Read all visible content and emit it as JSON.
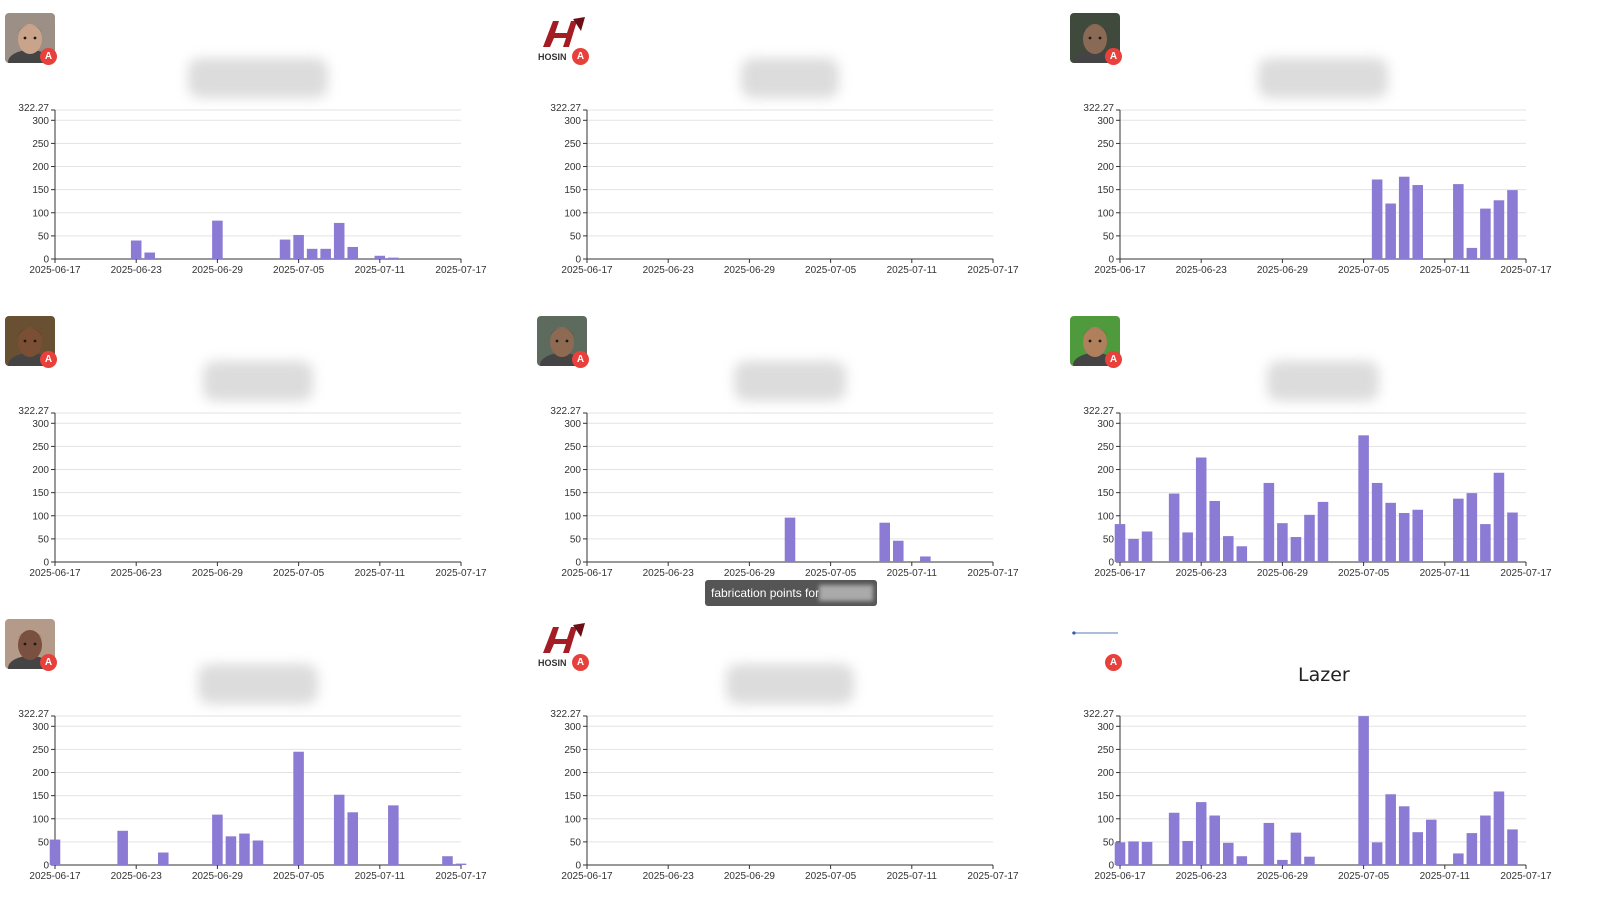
{
  "colors": {
    "bar": "#8b7bd4",
    "grid": "#e3e3e3",
    "axis": "#333333",
    "badge": "#e8413c"
  },
  "badge_letter": "A",
  "tooltip": {
    "text": "fabrication points for "
  },
  "chart_data": [
    {
      "type": "bar",
      "title": "",
      "logo": "person-1",
      "ymax_label": "322.27",
      "ylim": [
        0,
        322.27
      ],
      "y_ticks": [
        0,
        50,
        100,
        150,
        200,
        250,
        300
      ],
      "x_start": "2025-06-17",
      "x_end": "2025-07-17",
      "x_ticks": [
        "2025-06-17",
        "2025-06-23",
        "2025-06-29",
        "2025-07-05",
        "2025-07-11",
        "2025-07-17"
      ],
      "points": [
        [
          "2025-06-23",
          40
        ],
        [
          "2025-06-24",
          14
        ],
        [
          "2025-06-29",
          83
        ],
        [
          "2025-07-04",
          42
        ],
        [
          "2025-07-05",
          52
        ],
        [
          "2025-07-06",
          22
        ],
        [
          "2025-07-07",
          22
        ],
        [
          "2025-07-08",
          78
        ],
        [
          "2025-07-09",
          26
        ],
        [
          "2025-07-11",
          7
        ],
        [
          "2025-07-12",
          3
        ]
      ]
    },
    {
      "type": "bar",
      "title": "",
      "logo": "hosin",
      "ymax_label": "322.27",
      "ylim": [
        0,
        322.27
      ],
      "y_ticks": [
        0,
        50,
        100,
        150,
        200,
        250,
        300
      ],
      "x_start": "2025-06-17",
      "x_end": "2025-07-17",
      "x_ticks": [
        "2025-06-17",
        "2025-06-23",
        "2025-06-29",
        "2025-07-05",
        "2025-07-11",
        "2025-07-17"
      ],
      "points": []
    },
    {
      "type": "bar",
      "title": "",
      "logo": "person-2",
      "ymax_label": "322.27",
      "ylim": [
        0,
        322.27
      ],
      "y_ticks": [
        0,
        50,
        100,
        150,
        200,
        250,
        300
      ],
      "x_start": "2025-06-17",
      "x_end": "2025-07-17",
      "x_ticks": [
        "2025-06-17",
        "2025-06-23",
        "2025-06-29",
        "2025-07-05",
        "2025-07-11",
        "2025-07-17"
      ],
      "points": [
        [
          "2025-07-06",
          172
        ],
        [
          "2025-07-07",
          120
        ],
        [
          "2025-07-08",
          178
        ],
        [
          "2025-07-09",
          160
        ],
        [
          "2025-07-12",
          162
        ],
        [
          "2025-07-13",
          24
        ],
        [
          "2025-07-14",
          109
        ],
        [
          "2025-07-15",
          127
        ],
        [
          "2025-07-16",
          149
        ]
      ]
    },
    {
      "type": "bar",
      "title": "",
      "logo": "person-3",
      "ymax_label": "322.27",
      "ylim": [
        0,
        322.27
      ],
      "y_ticks": [
        0,
        50,
        100,
        150,
        200,
        250,
        300
      ],
      "x_start": "2025-06-17",
      "x_end": "2025-07-17",
      "x_ticks": [
        "2025-06-17",
        "2025-06-23",
        "2025-06-29",
        "2025-07-05",
        "2025-07-11",
        "2025-07-17"
      ],
      "points": []
    },
    {
      "type": "bar",
      "title": "",
      "logo": "person-4",
      "ymax_label": "322.27",
      "ylim": [
        0,
        322.27
      ],
      "y_ticks": [
        0,
        50,
        100,
        150,
        200,
        250,
        300
      ],
      "x_start": "2025-06-17",
      "x_end": "2025-07-17",
      "x_ticks": [
        "2025-06-17",
        "2025-06-23",
        "2025-06-29",
        "2025-07-05",
        "2025-07-11",
        "2025-07-17"
      ],
      "points": [
        [
          "2025-07-02",
          96
        ],
        [
          "2025-07-09",
          85
        ],
        [
          "2025-07-10",
          46
        ],
        [
          "2025-07-12",
          12
        ]
      ]
    },
    {
      "type": "bar",
      "title": "",
      "logo": "person-5",
      "ymax_label": "322.27",
      "ylim": [
        0,
        322.27
      ],
      "y_ticks": [
        0,
        50,
        100,
        150,
        200,
        250,
        300
      ],
      "x_start": "2025-06-17",
      "x_end": "2025-07-17",
      "x_ticks": [
        "2025-06-17",
        "2025-06-23",
        "2025-06-29",
        "2025-07-05",
        "2025-07-11",
        "2025-07-17"
      ],
      "points": [
        [
          "2025-06-17",
          82
        ],
        [
          "2025-06-18",
          50
        ],
        [
          "2025-06-19",
          66
        ],
        [
          "2025-06-21",
          148
        ],
        [
          "2025-06-22",
          64
        ],
        [
          "2025-06-23",
          226
        ],
        [
          "2025-06-24",
          132
        ],
        [
          "2025-06-25",
          56
        ],
        [
          "2025-06-26",
          34
        ],
        [
          "2025-06-28",
          171
        ],
        [
          "2025-06-29",
          84
        ],
        [
          "2025-06-30",
          54
        ],
        [
          "2025-07-01",
          102
        ],
        [
          "2025-07-02",
          130
        ],
        [
          "2025-07-05",
          274
        ],
        [
          "2025-07-06",
          171
        ],
        [
          "2025-07-07",
          128
        ],
        [
          "2025-07-08",
          106
        ],
        [
          "2025-07-09",
          113
        ],
        [
          "2025-07-12",
          137
        ],
        [
          "2025-07-13",
          149
        ],
        [
          "2025-07-14",
          82
        ],
        [
          "2025-07-15",
          193
        ],
        [
          "2025-07-16",
          107
        ]
      ]
    },
    {
      "type": "bar",
      "title": "",
      "logo": "person-6",
      "ymax_label": "322.27",
      "ylim": [
        0,
        322.27
      ],
      "y_ticks": [
        0,
        50,
        100,
        150,
        200,
        250,
        300
      ],
      "x_start": "2025-06-17",
      "x_end": "2025-07-17",
      "x_ticks": [
        "2025-06-17",
        "2025-06-23",
        "2025-06-29",
        "2025-07-05",
        "2025-07-11",
        "2025-07-17"
      ],
      "points": [
        [
          "2025-06-17",
          55
        ],
        [
          "2025-06-22",
          74
        ],
        [
          "2025-06-25",
          27
        ],
        [
          "2025-06-29",
          109
        ],
        [
          "2025-06-30",
          62
        ],
        [
          "2025-07-01",
          68
        ],
        [
          "2025-07-02",
          53
        ],
        [
          "2025-07-05",
          245
        ],
        [
          "2025-07-08",
          152
        ],
        [
          "2025-07-09",
          114
        ],
        [
          "2025-07-12",
          129
        ],
        [
          "2025-07-16",
          19
        ],
        [
          "2025-07-17",
          3
        ]
      ]
    },
    {
      "type": "bar",
      "title": "",
      "logo": "hosin",
      "ymax_label": "322.27",
      "ylim": [
        0,
        322.27
      ],
      "y_ticks": [
        0,
        50,
        100,
        150,
        200,
        250,
        300
      ],
      "x_start": "2025-06-17",
      "x_end": "2025-07-17",
      "x_ticks": [
        "2025-06-17",
        "2025-06-23",
        "2025-06-29",
        "2025-07-05",
        "2025-07-11",
        "2025-07-17"
      ],
      "points": []
    },
    {
      "type": "bar",
      "title": "Lazer",
      "logo": "chronometer",
      "ymax_label": "322.27",
      "ylim": [
        0,
        322.27
      ],
      "y_ticks": [
        0,
        50,
        100,
        150,
        200,
        250,
        300
      ],
      "x_start": "2025-06-17",
      "x_end": "2025-07-17",
      "x_ticks": [
        "2025-06-17",
        "2025-06-23",
        "2025-06-29",
        "2025-07-05",
        "2025-07-11",
        "2025-07-17"
      ],
      "points": [
        [
          "2025-06-17",
          49
        ],
        [
          "2025-06-18",
          51
        ],
        [
          "2025-06-19",
          50
        ],
        [
          "2025-06-21",
          113
        ],
        [
          "2025-06-22",
          52
        ],
        [
          "2025-06-23",
          136
        ],
        [
          "2025-06-24",
          107
        ],
        [
          "2025-06-25",
          48
        ],
        [
          "2025-06-26",
          19
        ],
        [
          "2025-06-28",
          91
        ],
        [
          "2025-06-29",
          11
        ],
        [
          "2025-06-30",
          70
        ],
        [
          "2025-07-01",
          18
        ],
        [
          "2025-07-05",
          322
        ],
        [
          "2025-07-06",
          49
        ],
        [
          "2025-07-07",
          153
        ],
        [
          "2025-07-08",
          127
        ],
        [
          "2025-07-09",
          71
        ],
        [
          "2025-07-10",
          98
        ],
        [
          "2025-07-12",
          25
        ],
        [
          "2025-07-13",
          69
        ],
        [
          "2025-07-14",
          107
        ],
        [
          "2025-07-15",
          159
        ],
        [
          "2025-07-16",
          77
        ]
      ]
    }
  ]
}
